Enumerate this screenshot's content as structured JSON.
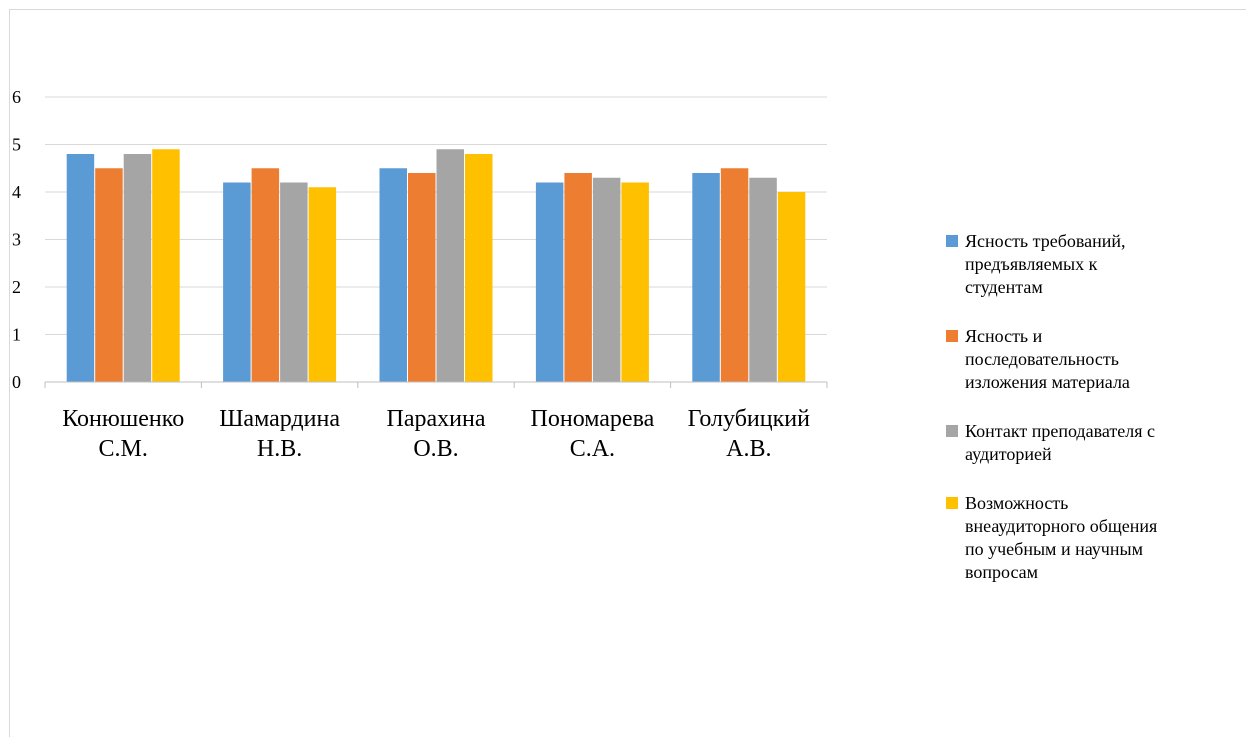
{
  "chart_data": {
    "type": "bar",
    "title": "",
    "xlabel": "",
    "ylabel": "",
    "ylim": [
      0,
      6
    ],
    "yticks": [
      0,
      1,
      2,
      3,
      4,
      5,
      6
    ],
    "grid": true,
    "legend_position": "right",
    "categories": [
      [
        "Конюшенко",
        "С.М."
      ],
      [
        "Шамардина",
        "Н.В."
      ],
      [
        "Парахина",
        "О.В."
      ],
      [
        "Пономарева",
        "С.А."
      ],
      [
        "Голубицкий",
        "А.В."
      ]
    ],
    "series": [
      {
        "name": "Ясность требований,\nпредъявляемых к\nстудентам",
        "color": "#5b9bd5",
        "values": [
          4.8,
          4.2,
          4.5,
          4.2,
          4.4
        ]
      },
      {
        "name": "Ясность и\nпоследовательность\nизложения материала",
        "color": "#ed7d31",
        "values": [
          4.5,
          4.5,
          4.4,
          4.4,
          4.5
        ]
      },
      {
        "name": "Контакт преподавателя с\nаудиторией",
        "color": "#a5a5a5",
        "values": [
          4.8,
          4.2,
          4.9,
          4.3,
          4.3
        ]
      },
      {
        "name": "Возможность\nвнеаудиторного общения\nпо учебным и научным\nвопросам",
        "color": "#ffc000",
        "values": [
          4.9,
          4.1,
          4.8,
          4.2,
          4.0
        ]
      }
    ]
  }
}
